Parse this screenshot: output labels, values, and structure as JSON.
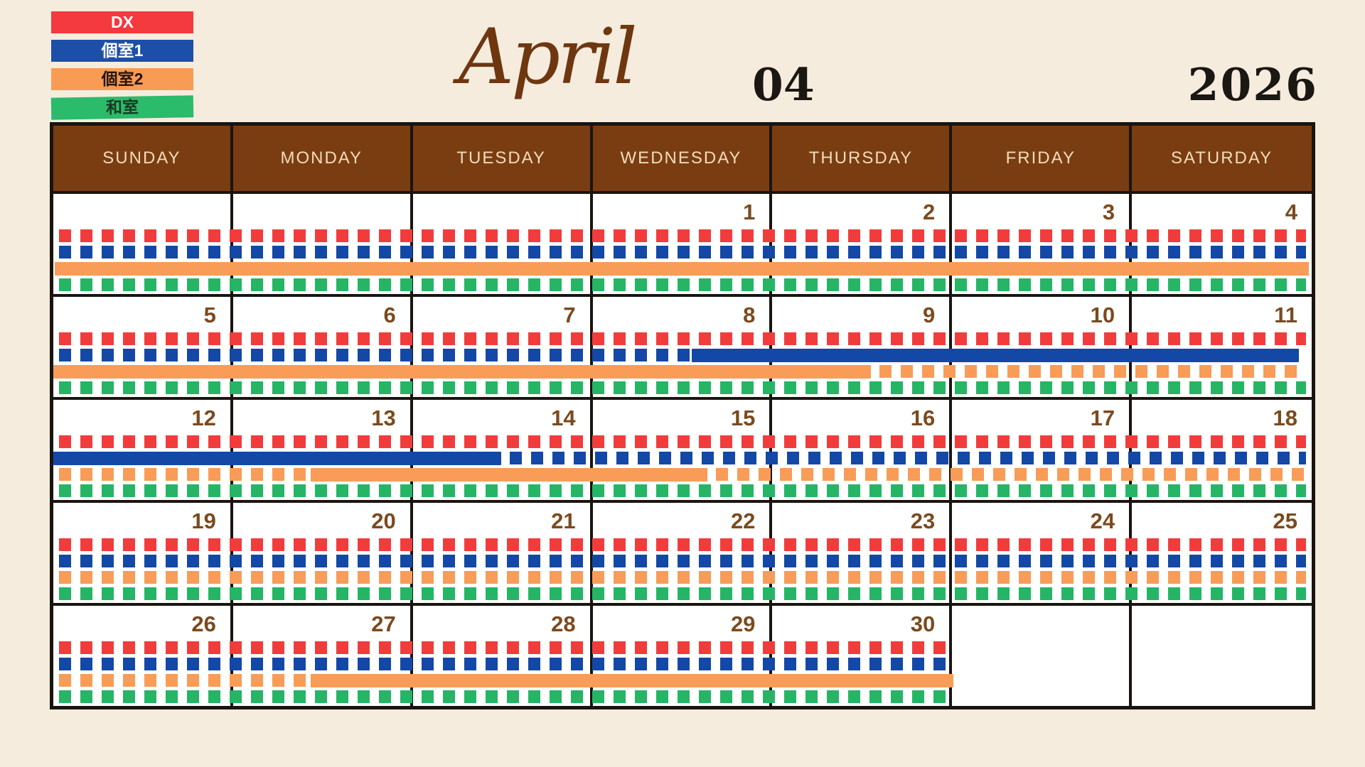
{
  "page": {
    "background": "#F5ECDD"
  },
  "legend": {
    "items": [
      {
        "label": "DX",
        "color": "#F4393F",
        "text_color": "#FFFFFF"
      },
      {
        "label": "個室1",
        "color": "#1C4FA8",
        "text_color": "#FFFFFF"
      },
      {
        "label": "個室2",
        "color": "#F89B55",
        "text_color": "#26150A"
      },
      {
        "label": "和室",
        "color": "#2BBB6B",
        "text_color": "#173A22"
      }
    ]
  },
  "title": {
    "month_script": "April",
    "month_number": "04",
    "year": "2026"
  },
  "calendar": {
    "weekday_labels": [
      "SUNDAY",
      "MONDAY",
      "TUESDAY",
      "WEDNESDAY",
      "THURSDAY",
      "FRIDAY",
      "SATURDAY"
    ],
    "header_bg": "#7A3D11",
    "header_text_color": "#F3DCBA",
    "grid_color": "#1A1410",
    "day_number_color": "#7B4A1E",
    "rooms": [
      {
        "name": "DX",
        "color": "#F23C3C"
      },
      {
        "name": "個室1",
        "color": "#1348A6"
      },
      {
        "name": "個室2",
        "color": "#F89C58"
      },
      {
        "name": "和室",
        "color": "#25B565"
      }
    ],
    "weeks": [
      {
        "days": [
          "",
          "",
          "",
          "1",
          "2",
          "3",
          "4"
        ],
        "lanes": [
          [
            {
              "style": "dashed",
              "from": 8,
              "to": 1762
            }
          ],
          [
            {
              "style": "dashed",
              "from": 8,
              "to": 1762
            }
          ],
          [
            {
              "style": "solid",
              "from": 2,
              "to": 1766
            }
          ],
          [
            {
              "style": "dashed",
              "from": 8,
              "to": 1762
            }
          ]
        ]
      },
      {
        "days": [
          "5",
          "6",
          "7",
          "8",
          "9",
          "10",
          "11"
        ],
        "lanes": [
          [
            {
              "style": "dashed",
              "from": 8,
              "to": 1762
            }
          ],
          [
            {
              "style": "dashed",
              "from": 8,
              "to": 898
            },
            {
              "style": "solid",
              "from": 898,
              "to": 1752
            }
          ],
          [
            {
              "style": "solid",
              "from": 0,
              "to": 1150
            },
            {
              "style": "dashed",
              "from": 1162,
              "to": 1762
            }
          ],
          [
            {
              "style": "dashed",
              "from": 8,
              "to": 1762
            }
          ]
        ]
      },
      {
        "days": [
          "12",
          "13",
          "14",
          "15",
          "16",
          "17",
          "18"
        ],
        "lanes": [
          [
            {
              "style": "dashed",
              "from": 8,
              "to": 1762
            }
          ],
          [
            {
              "style": "solid",
              "from": 0,
              "to": 630
            },
            {
              "style": "dashed",
              "from": 642,
              "to": 1762
            }
          ],
          [
            {
              "style": "dashed",
              "from": 8,
              "to": 356
            },
            {
              "style": "solid",
              "from": 362,
              "to": 920
            },
            {
              "style": "dashed",
              "from": 932,
              "to": 1762
            }
          ],
          [
            {
              "style": "dashed",
              "from": 8,
              "to": 1762
            }
          ]
        ]
      },
      {
        "days": [
          "19",
          "20",
          "21",
          "22",
          "23",
          "24",
          "25"
        ],
        "lanes": [
          [
            {
              "style": "dashed",
              "from": 8,
              "to": 1762
            }
          ],
          [
            {
              "style": "dashed",
              "from": 8,
              "to": 1762
            }
          ],
          [
            {
              "style": "dashed",
              "from": 8,
              "to": 1762
            }
          ],
          [
            {
              "style": "dashed",
              "from": 8,
              "to": 1762
            }
          ]
        ]
      },
      {
        "days": [
          "26",
          "27",
          "28",
          "29",
          "30",
          "",
          ""
        ],
        "lanes": [
          [
            {
              "style": "dashed",
              "from": 8,
              "to": 1262
            }
          ],
          [
            {
              "style": "dashed",
              "from": 8,
              "to": 1262
            }
          ],
          [
            {
              "style": "dashed",
              "from": 8,
              "to": 356
            },
            {
              "style": "solid",
              "from": 362,
              "to": 1266
            }
          ],
          [
            {
              "style": "dashed",
              "from": 8,
              "to": 1262
            }
          ]
        ]
      }
    ]
  }
}
